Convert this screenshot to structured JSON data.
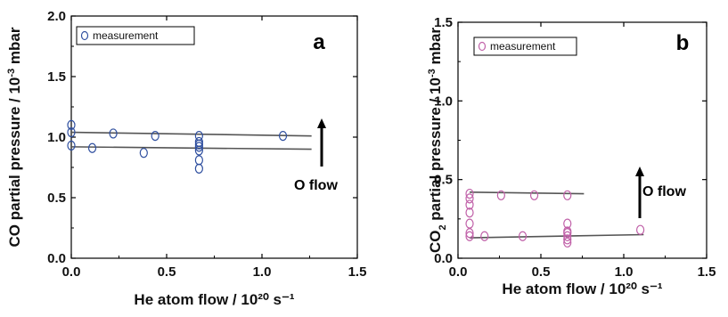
{
  "chart_data": [
    {
      "type": "scatter",
      "panel_label": "a",
      "xlabel": "He atom flow / 10²⁰ s⁻¹",
      "ylabel_parts": [
        "CO partial pressure / 10",
        "-3",
        " mbar"
      ],
      "xlim": [
        0,
        1.5
      ],
      "ylim": [
        0,
        2.0
      ],
      "xticks": [
        "0.0",
        "0.5",
        "1.0",
        "1.5"
      ],
      "yticks": [
        "0.0",
        "0.5",
        "1.0",
        "1.5",
        "2.0"
      ],
      "legend": {
        "label": "measurement",
        "position": "top-left"
      },
      "annotation": "O flow",
      "marker_color": "#2f4f9f",
      "series": [
        {
          "name": "measurement",
          "x": [
            0.0,
            0.0,
            0.0,
            0.11,
            0.22,
            0.38,
            0.44,
            0.67,
            0.67,
            0.67,
            0.67,
            0.67,
            0.67,
            0.67,
            1.11
          ],
          "y": [
            1.1,
            1.04,
            0.93,
            0.91,
            1.03,
            0.87,
            1.01,
            1.01,
            0.96,
            0.94,
            0.92,
            0.89,
            0.81,
            0.74,
            1.01
          ]
        }
      ],
      "fit_lines": [
        {
          "x": [
            0.0,
            1.26
          ],
          "y": [
            1.04,
            1.01
          ]
        },
        {
          "x": [
            0.0,
            1.26
          ],
          "y": [
            0.92,
            0.9
          ]
        }
      ]
    },
    {
      "type": "scatter",
      "panel_label": "b",
      "xlabel": "He atom flow / 10²⁰ s⁻¹",
      "ylabel_parts": [
        "CO",
        "2",
        " partial pressure / 10",
        "-3",
        " mbar"
      ],
      "xlim": [
        0,
        1.5
      ],
      "ylim": [
        0,
        1.5
      ],
      "xticks": [
        "0.0",
        "0.5",
        "1.0",
        "1.5"
      ],
      "yticks": [
        "0.0",
        "0.5",
        "1.0",
        "1.5"
      ],
      "legend": {
        "label": "measurement",
        "position": "top-left"
      },
      "annotation": "O flow",
      "marker_color": "#c060a8",
      "series": [
        {
          "name": "measurement",
          "x": [
            0.07,
            0.07,
            0.07,
            0.07,
            0.07,
            0.07,
            0.07,
            0.16,
            0.26,
            0.39,
            0.46,
            0.66,
            0.66,
            0.66,
            0.66,
            0.66,
            0.66,
            0.66,
            1.1
          ],
          "y": [
            0.41,
            0.38,
            0.34,
            0.29,
            0.22,
            0.16,
            0.14,
            0.14,
            0.4,
            0.14,
            0.4,
            0.4,
            0.22,
            0.17,
            0.16,
            0.14,
            0.12,
            0.1,
            0.18
          ]
        }
      ],
      "fit_lines": [
        {
          "x": [
            0.07,
            0.76
          ],
          "y": [
            0.42,
            0.41
          ]
        },
        {
          "x": [
            0.07,
            1.12
          ],
          "y": [
            0.13,
            0.15
          ]
        }
      ]
    }
  ]
}
